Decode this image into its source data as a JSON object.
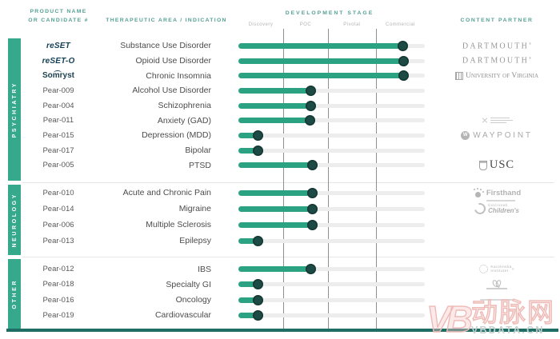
{
  "header": {
    "product_col_line1": "PRODUCT NAME",
    "product_col_line2": "OR CANDIDATE #",
    "indication_col": "THERAPEUTIC AREA / INDICATION",
    "stage_col": "DEVELOPMENT STAGE",
    "partner_col": "CONTENT PARTNER"
  },
  "watermark": {
    "logo_text": "VB",
    "cjk_text": "动脉网",
    "site_text": "VBDATA.CN"
  },
  "colors": {
    "accent_green": "#36a98d",
    "bar_green": "#2ba382",
    "dot_teal": "#1d4a44",
    "bottom_rule_teal": "#1e6e66",
    "header_teal": "#55a093",
    "watermark_pink": "#eebab6"
  },
  "chart_data": {
    "type": "bar",
    "title": "",
    "xlabel": "DEVELOPMENT STAGE",
    "stages": [
      "Discovery",
      "POC",
      "Pivotal",
      "Commercial"
    ],
    "legend": "none",
    "grid": "vertical stage dividers",
    "sections": [
      {
        "label": "PSYCHIATRY",
        "rows": [
          {
            "product": "reSET",
            "product_style": "reset",
            "indication": "Substance Use Disorder",
            "stage_reached": "Commercial",
            "progress": 88,
            "partner": {
              "style": "dartmouth",
              "name": "DARTMOUTH",
              "mark": "®"
            }
          },
          {
            "product": "reSET-O",
            "product_style": "reset",
            "indication": "Opioid Use Disorder",
            "stage_reached": "Commercial",
            "progress": 88.5,
            "partner": {
              "style": "dartmouth",
              "name": "DARTMOUTH",
              "mark": "®"
            }
          },
          {
            "product": "Somryst",
            "product_style": "somryst",
            "indication": "Chronic Insomnia",
            "stage_reached": "Commercial",
            "progress": 88.5,
            "partner": {
              "style": "uva",
              "name": "University of Virginia"
            }
          },
          {
            "product": "Pear-009",
            "product_style": "plain",
            "indication": "Alcohol Use Disorder",
            "stage_reached": "POC",
            "progress": 39,
            "partner": null
          },
          {
            "product": "Pear-004",
            "product_style": "plain",
            "indication": "Schizophrenia",
            "stage_reached": "POC",
            "progress": 39,
            "partner": null
          },
          {
            "product": "Pear-011",
            "product_style": "plain",
            "indication": "Anxiety (GAD)",
            "stage_reached": "POC",
            "progress": 38.5,
            "partner": {
              "style": "micro",
              "name": ""
            }
          },
          {
            "product": "Pear-015",
            "product_style": "plain",
            "indication": "Depression (MDD)",
            "stage_reached": "Discovery",
            "progress": 10.5,
            "partner": {
              "style": "waypoint",
              "name": "WAYPOINT",
              "icon_letter": "W"
            }
          },
          {
            "product": "Pear-017",
            "product_style": "plain",
            "indication": "Bipolar",
            "stage_reached": "Discovery",
            "progress": 10.5,
            "partner": null
          },
          {
            "product": "Pear-005",
            "product_style": "plain",
            "indication": "PTSD",
            "stage_reached": "POC",
            "progress": 39.5,
            "partner": {
              "style": "usc",
              "name": "USC"
            }
          }
        ]
      },
      {
        "label": "NEUROLOGY",
        "rows": [
          {
            "product": "Pear-010",
            "product_style": "plain",
            "indication": "Acute and Chronic Pain",
            "stage_reached": "POC",
            "progress": 39.5,
            "partner": {
              "style": "firsthand",
              "name": "Firsthand"
            }
          },
          {
            "product": "Pear-014",
            "product_style": "plain",
            "indication": "Migraine",
            "stage_reached": "POC",
            "progress": 39.5,
            "partner": {
              "style": "cincinnati",
              "name": "Cincinnati Children's"
            }
          },
          {
            "product": "Pear-006",
            "product_style": "plain",
            "indication": "Multiple Sclerosis",
            "stage_reached": "POC",
            "progress": 39.5,
            "partner": null
          },
          {
            "product": "Pear-013",
            "product_style": "plain",
            "indication": "Epilepsy",
            "stage_reached": "Discovery",
            "progress": 10.5,
            "partner": null
          }
        ]
      },
      {
        "label": "OTHER",
        "rows": [
          {
            "product": "Pear-012",
            "product_style": "plain",
            "indication": "IBS",
            "stage_reached": "POC",
            "progress": 39,
            "partner": {
              "style": "karolinska",
              "name": "Karolinska Institutet",
              "mark": "®"
            }
          },
          {
            "product": "Pear-018",
            "product_style": "plain",
            "indication": "Specialty GI",
            "stage_reached": "Discovery",
            "progress": 10.5,
            "partner": {
              "style": "sprout",
              "name": ""
            }
          },
          {
            "product": "Pear-016",
            "product_style": "plain",
            "indication": "Oncology",
            "stage_reached": "Discovery",
            "progress": 10.5,
            "partner": {
              "style": "faint",
              "name": ""
            }
          },
          {
            "product": "Pear-019",
            "product_style": "plain",
            "indication": "Cardiovascular",
            "stage_reached": "Discovery",
            "progress": 10.5,
            "partner": null
          }
        ]
      }
    ]
  }
}
